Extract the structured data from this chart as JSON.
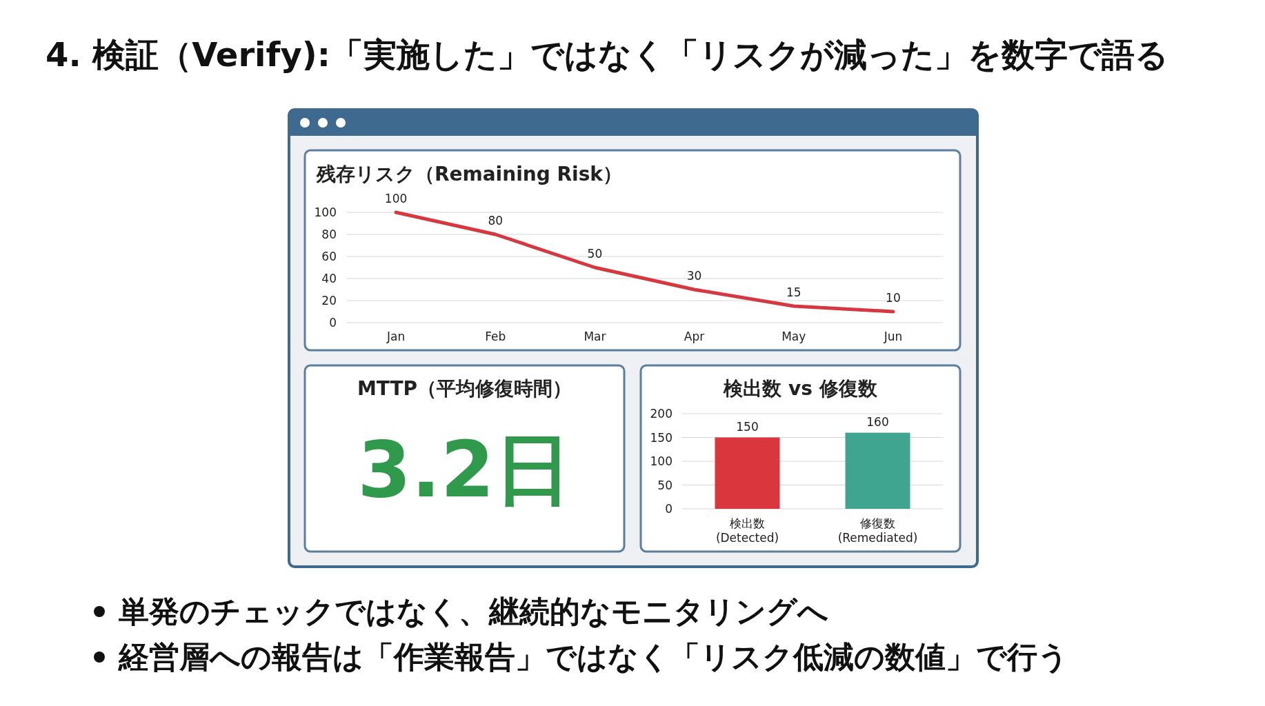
{
  "chart_data": [
    {
      "type": "other",
      "title": "4. 検証（Verify):「実施した」ではなく「リスクが減った」を数字で語る",
      "annotations": [
        "単発のチェックではなく、継続的なモニタリングへ",
        "経営層への報告は「作業報告」ではなく「リスク低減の数値」で行う"
      ]
    },
    {
      "type": "line",
      "title": "残存リスク（Remaining Risk）",
      "categories": [
        "Jan",
        "Feb",
        "Mar",
        "Apr",
        "May",
        "Jun"
      ],
      "values": [
        100,
        80,
        50,
        30,
        15,
        10
      ],
      "color": "#d6383f",
      "ylim": [
        0,
        100
      ],
      "yticks": [
        0,
        20,
        40,
        60,
        80,
        100
      ],
      "grid": "y",
      "data_labels": true
    },
    {
      "type": "other",
      "title": "MTTP（平均修復時間）",
      "annotations": [
        "3.2日"
      ]
    },
    {
      "type": "bar",
      "title": "検出数 vs 修復数",
      "categories": [
        "検出数 (Detected)",
        "修復数 (Remediated)"
      ],
      "values": [
        150,
        160
      ],
      "colors": [
        "#d9363e",
        "#3fa590"
      ],
      "ylim": [
        0,
        200
      ],
      "yticks": [
        0,
        50,
        100,
        150,
        200
      ],
      "grid": "y",
      "data_labels": true
    }
  ]
}
